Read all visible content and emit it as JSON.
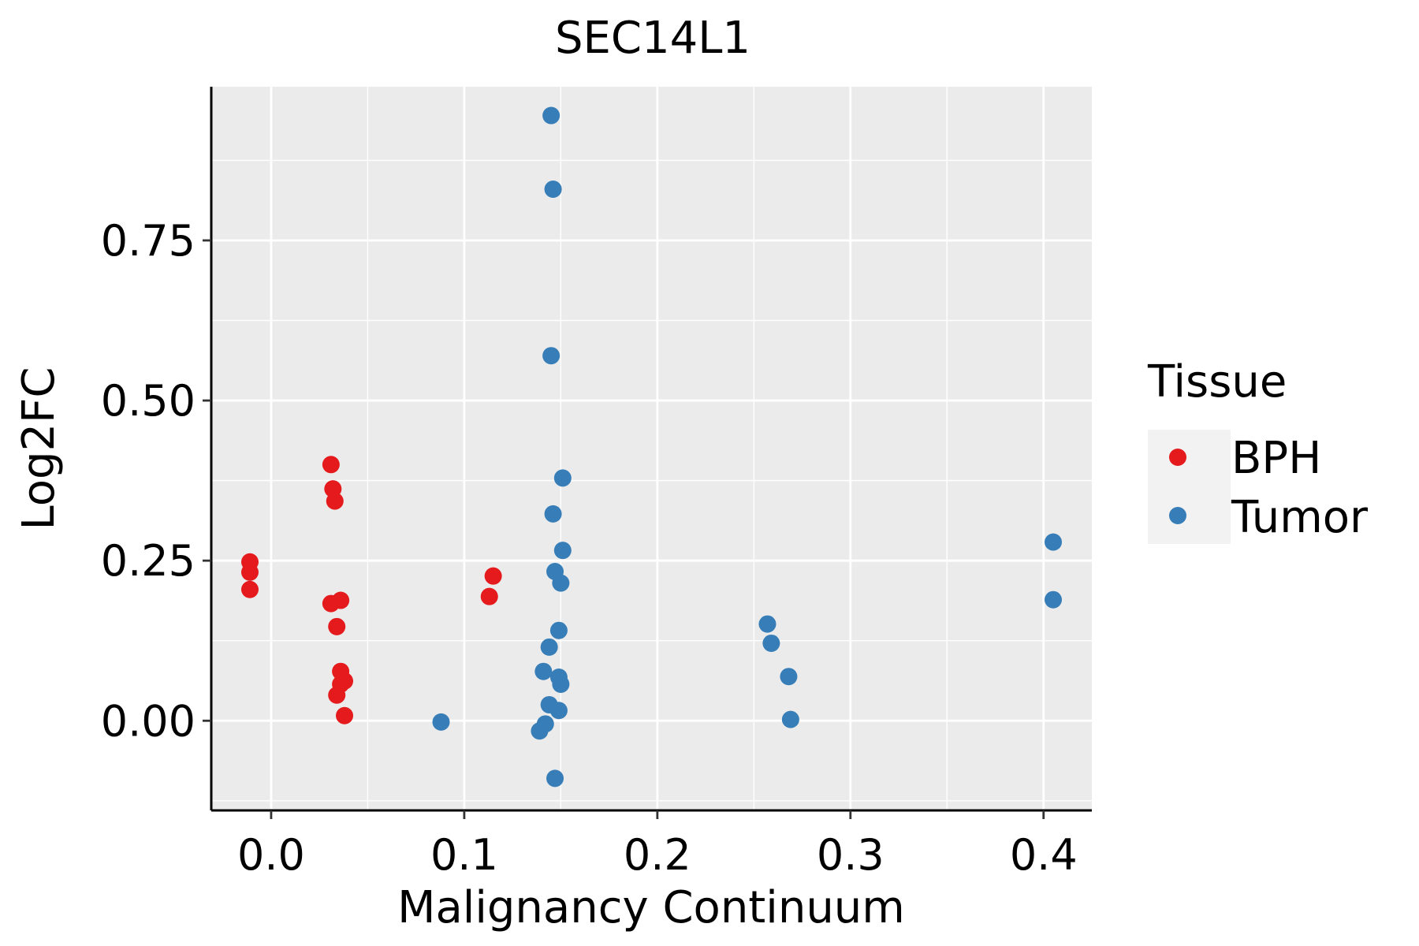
{
  "chart_data": {
    "type": "scatter",
    "title": "SEC14L1",
    "xlabel": "Malignancy Continuum",
    "ylabel": "Log2FC",
    "xlim": [
      -0.031,
      0.425
    ],
    "ylim": [
      -0.14,
      0.99
    ],
    "x_ticks": [
      0.0,
      0.1,
      0.2,
      0.3,
      0.4
    ],
    "x_tick_labels": [
      "0.0",
      "0.1",
      "0.2",
      "0.3",
      "0.4"
    ],
    "y_ticks": [
      0.0,
      0.25,
      0.5,
      0.75
    ],
    "y_tick_labels": [
      "0.00",
      "0.25",
      "0.50",
      "0.75"
    ],
    "grid": true,
    "legend": {
      "title": "Tissue",
      "position": "right",
      "entries": [
        {
          "label": "BPH",
          "color": "#E41A1C"
        },
        {
          "label": "Tumor",
          "color": "#377EB8"
        }
      ]
    },
    "series": [
      {
        "name": "BPH",
        "color": "#E41A1C",
        "points": [
          {
            "x": -0.011,
            "y": 0.248
          },
          {
            "x": -0.011,
            "y": 0.232
          },
          {
            "x": -0.011,
            "y": 0.205
          },
          {
            "x": 0.031,
            "y": 0.4
          },
          {
            "x": 0.032,
            "y": 0.362
          },
          {
            "x": 0.033,
            "y": 0.343
          },
          {
            "x": 0.031,
            "y": 0.183
          },
          {
            "x": 0.036,
            "y": 0.188
          },
          {
            "x": 0.034,
            "y": 0.147
          },
          {
            "x": 0.036,
            "y": 0.077
          },
          {
            "x": 0.038,
            "y": 0.062
          },
          {
            "x": 0.036,
            "y": 0.057
          },
          {
            "x": 0.034,
            "y": 0.04
          },
          {
            "x": 0.038,
            "y": 0.008
          },
          {
            "x": 0.115,
            "y": 0.226
          },
          {
            "x": 0.113,
            "y": 0.194
          }
        ]
      },
      {
        "name": "Tumor",
        "color": "#377EB8",
        "points": [
          {
            "x": 0.145,
            "y": 0.945
          },
          {
            "x": 0.146,
            "y": 0.83
          },
          {
            "x": 0.145,
            "y": 0.57
          },
          {
            "x": 0.151,
            "y": 0.379
          },
          {
            "x": 0.146,
            "y": 0.323
          },
          {
            "x": 0.151,
            "y": 0.266
          },
          {
            "x": 0.147,
            "y": 0.233
          },
          {
            "x": 0.15,
            "y": 0.215
          },
          {
            "x": 0.149,
            "y": 0.141
          },
          {
            "x": 0.144,
            "y": 0.115
          },
          {
            "x": 0.141,
            "y": 0.077
          },
          {
            "x": 0.149,
            "y": 0.068
          },
          {
            "x": 0.15,
            "y": 0.057
          },
          {
            "x": 0.144,
            "y": 0.025
          },
          {
            "x": 0.149,
            "y": 0.016
          },
          {
            "x": 0.142,
            "y": -0.005
          },
          {
            "x": 0.139,
            "y": -0.016
          },
          {
            "x": 0.088,
            "y": -0.002
          },
          {
            "x": 0.147,
            "y": -0.09
          },
          {
            "x": 0.257,
            "y": 0.151
          },
          {
            "x": 0.259,
            "y": 0.121
          },
          {
            "x": 0.268,
            "y": 0.069
          },
          {
            "x": 0.269,
            "y": 0.002
          },
          {
            "x": 0.405,
            "y": 0.279
          },
          {
            "x": 0.405,
            "y": 0.189
          }
        ]
      }
    ]
  }
}
